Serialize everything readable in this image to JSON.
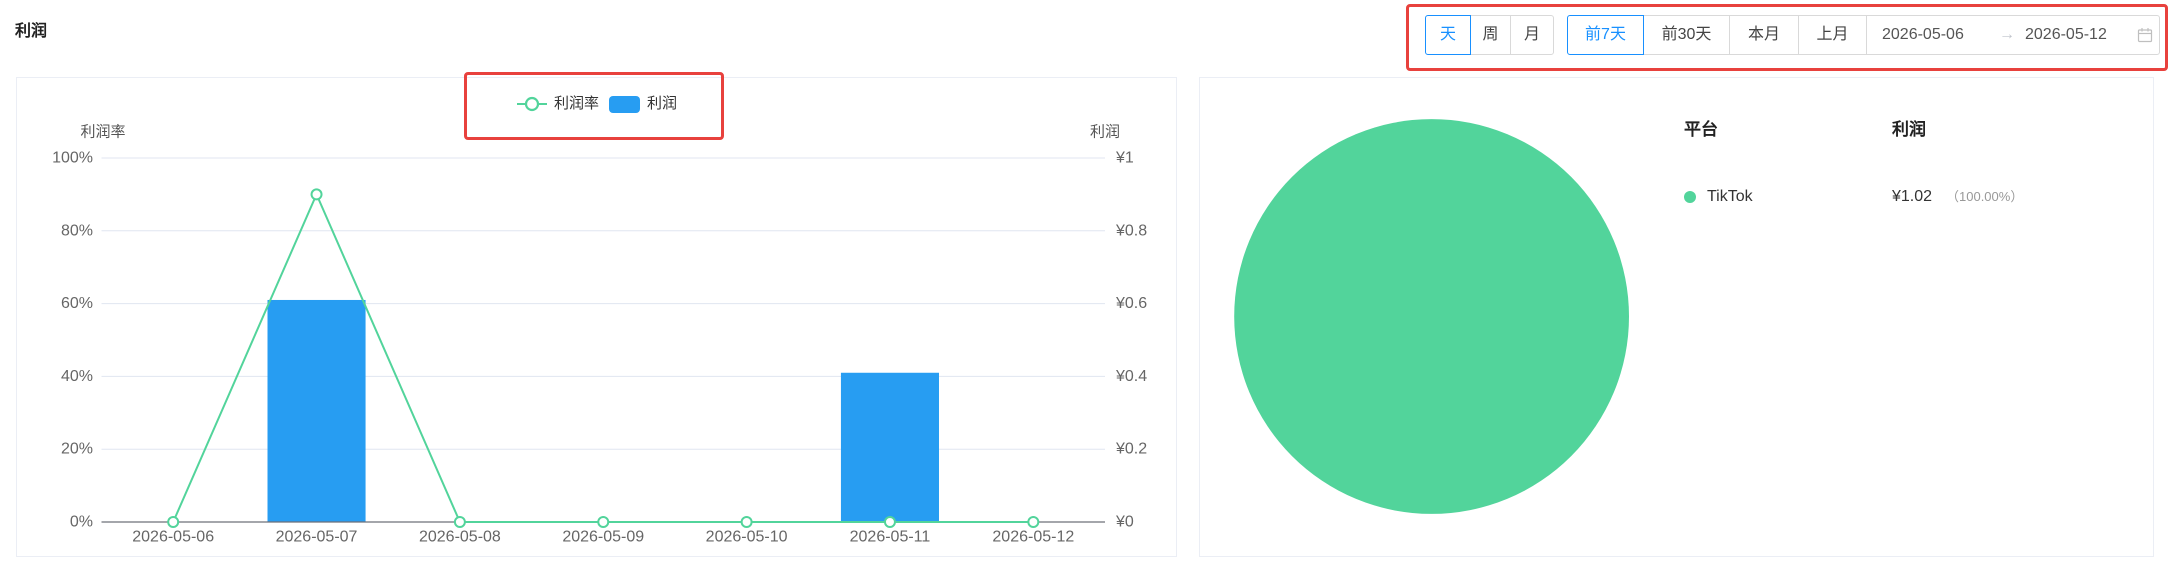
{
  "header": {
    "title": "利润"
  },
  "toolbar": {
    "granularity": [
      {
        "label": "天",
        "selected": true
      },
      {
        "label": "周",
        "selected": false
      },
      {
        "label": "月",
        "selected": false
      }
    ],
    "quick_ranges": [
      {
        "label": "前7天",
        "selected": true
      },
      {
        "label": "前30天",
        "selected": false
      },
      {
        "label": "本月",
        "selected": false
      },
      {
        "label": "上月",
        "selected": false
      }
    ],
    "date_range": {
      "start": "2026-05-06",
      "separator": "→",
      "end": "2026-05-12",
      "icon": "calendar-icon"
    }
  },
  "chart_data": [
    {
      "type": "bar",
      "categories": [
        "2026-05-06",
        "2026-05-07",
        "2026-05-08",
        "2026-05-09",
        "2026-05-10",
        "2026-05-11",
        "2026-05-12"
      ],
      "series": [
        {
          "name": "利润率",
          "type": "line",
          "y_axis": "left",
          "values": [
            0,
            90,
            0,
            0,
            0,
            0,
            0
          ],
          "color": "#52d49b"
        },
        {
          "name": "利润",
          "type": "bar",
          "y_axis": "right",
          "values": [
            0,
            0.61,
            0,
            0,
            0,
            0.41,
            0
          ],
          "color": "#279df2"
        }
      ],
      "y_left": {
        "label": "利润率",
        "range": [
          0,
          100
        ],
        "ticks": [
          "0%",
          "20%",
          "40%",
          "60%",
          "80%",
          "100%"
        ]
      },
      "y_right": {
        "label": "利润",
        "range": [
          0,
          1
        ],
        "ticks": [
          "¥0",
          "¥0.2",
          "¥0.4",
          "¥0.6",
          "¥0.8",
          "¥1"
        ]
      },
      "legend": {
        "placement": "top-center"
      },
      "grid": true
    },
    {
      "type": "pie",
      "headers": {
        "platform": "平台",
        "profit": "利润"
      },
      "slices": [
        {
          "label": "TikTok",
          "value": 1.02,
          "value_label": "¥1.02",
          "percent_label": "（100.00%）",
          "color": "#52d49b"
        }
      ]
    }
  ],
  "theme": {
    "accent": "#1890ff",
    "highlight": "#e8413d",
    "text": "#333333",
    "muted": "#999999"
  }
}
